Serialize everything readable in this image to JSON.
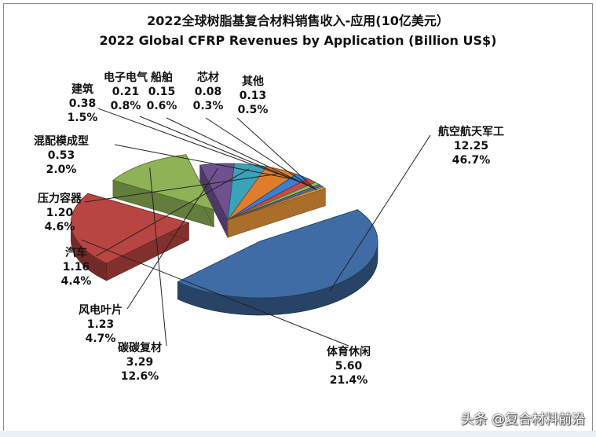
{
  "title_line1": "2022全球树脂基复合材料销售收入-应用(10亿美元）",
  "title_line2": "2022 Global CFRP Revenues by Application (Billion US$)",
  "watermark": "头条 @复合材料前沿",
  "chart_data": {
    "type": "pie",
    "style": "3d-exploded",
    "title": "2022全球树脂基复合材料销售收入-应用(10亿美元）",
    "subtitle": "2022 Global CFRP Revenues by Application (Billion US$)",
    "slices": [
      {
        "name": "航空航天军工",
        "value": "12.25",
        "percent": "46.7%",
        "color": "#3f6ca5"
      },
      {
        "name": "体育休闲",
        "value": "5.60",
        "percent": "21.4%",
        "color": "#b94542"
      },
      {
        "name": "碳碳复材",
        "value": "3.29",
        "percent": "12.6%",
        "color": "#8fb256"
      },
      {
        "name": "风电叶片",
        "value": "1.23",
        "percent": "4.7%",
        "color": "#6f5190"
      },
      {
        "name": "汽车",
        "value": "1.16",
        "percent": "4.4%",
        "color": "#3aa2b9"
      },
      {
        "name": "压力容器",
        "value": "1.20",
        "percent": "4.6%",
        "color": "#e07d2c"
      },
      {
        "name": "混配模成型",
        "value": "0.53",
        "percent": "2.0%",
        "color": "#3a7fd0"
      },
      {
        "name": "建筑",
        "value": "0.38",
        "percent": "1.5%",
        "color": "#c94a4a"
      },
      {
        "name": "电子电气",
        "value": "0.21",
        "percent": "0.8%",
        "color": "#8fc050"
      },
      {
        "name": "船舶",
        "value": "0.15",
        "percent": "0.6%",
        "color": "#7a5ca6"
      },
      {
        "name": "芯材",
        "value": "0.08",
        "percent": "0.3%",
        "color": "#3cb4cc"
      },
      {
        "name": "其他",
        "value": "0.13",
        "percent": "0.5%",
        "color": "#f39c3c"
      }
    ]
  }
}
